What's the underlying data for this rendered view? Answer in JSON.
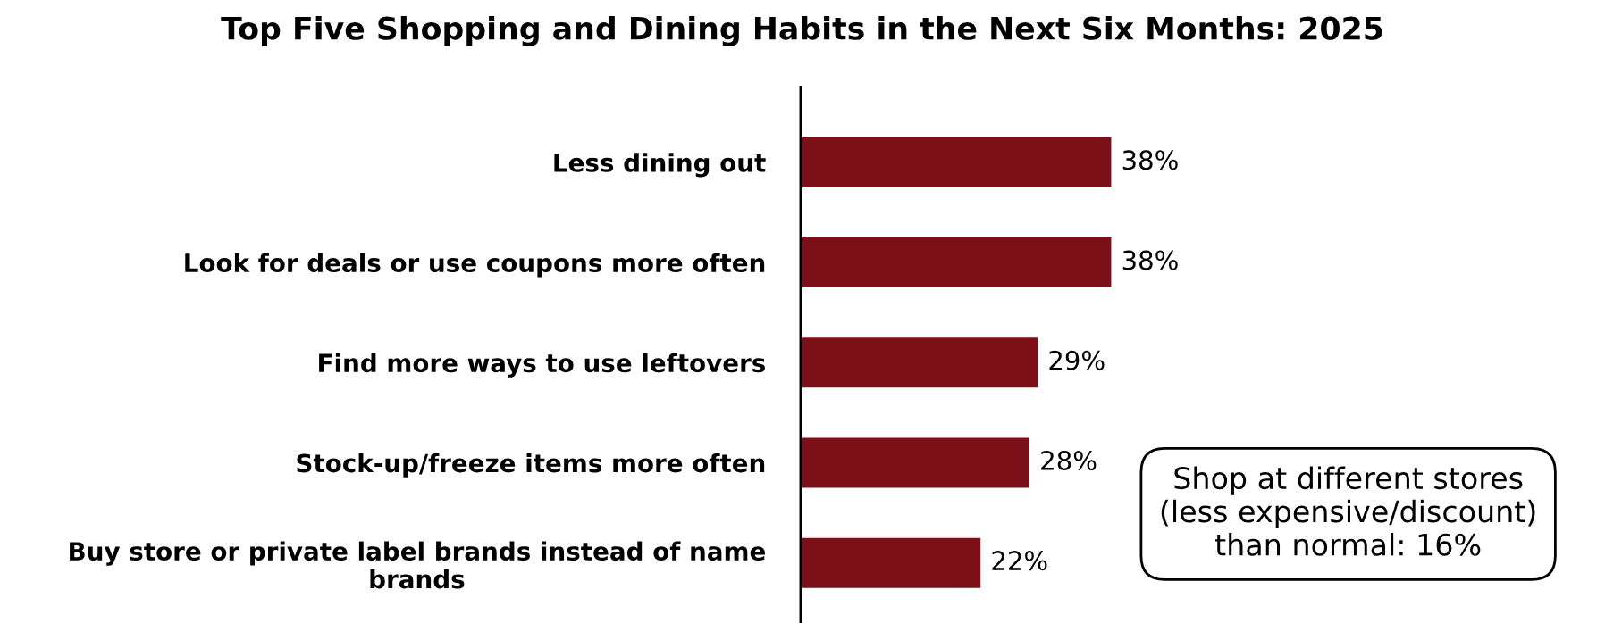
{
  "chart_data": {
    "type": "bar",
    "orientation": "horizontal",
    "title": "Top Five Shopping and Dining Habits in the Next Six Months: 2025",
    "categories": [
      "Less dining out",
      "Look for deals or use coupons more often",
      "Find more ways to use leftovers",
      "Stock-up/freeze items more often",
      "Buy store or private label brands instead of name\nbrands"
    ],
    "values": [
      38,
      38,
      29,
      28,
      22
    ],
    "color": "#7b1018",
    "data_labels": true,
    "value_labels": [
      "38%",
      "38%",
      "29%",
      "28%",
      "22%"
    ],
    "tick_labels": "y",
    "grid": false,
    "legend": false,
    "annotations": [
      "Shop at different stores\n(less expensive/discount)\nthan normal: 16%"
    ]
  }
}
